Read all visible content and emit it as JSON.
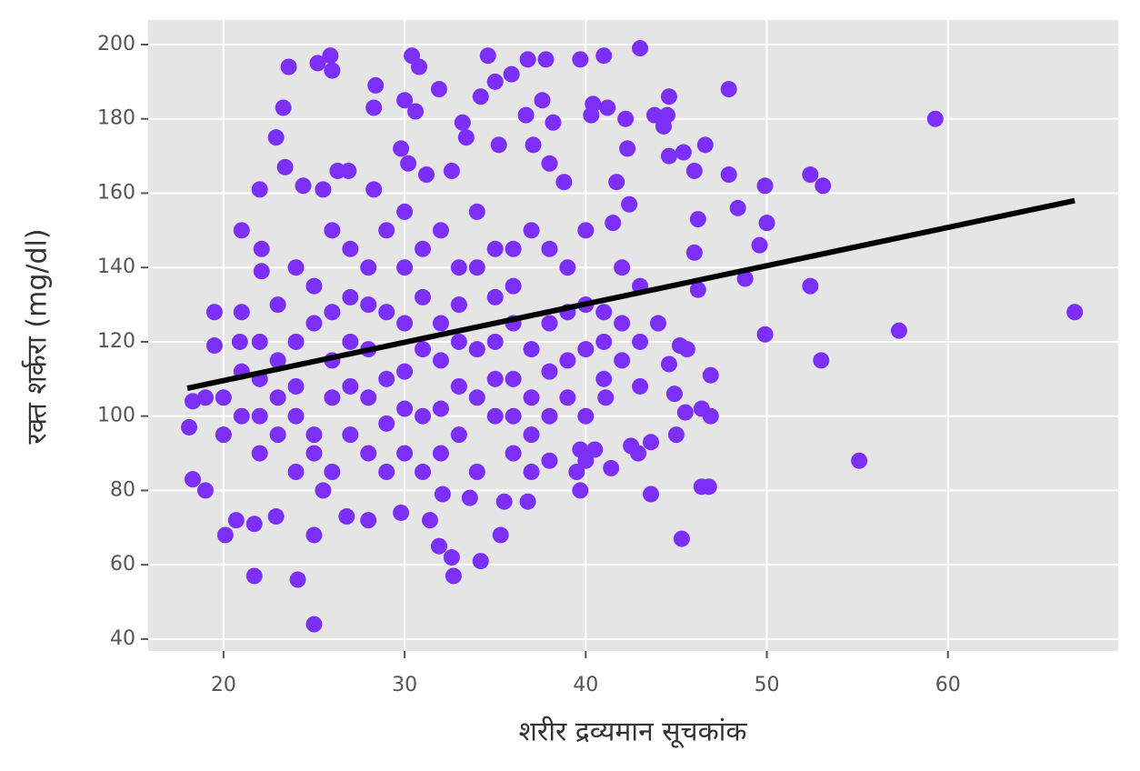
{
  "chart_data": {
    "type": "scatter",
    "x_label": "शरीर द्रव्यमान सूचकांक",
    "y_label": "रक्त शर्करा (mg/dl)",
    "color": "#7b2ff7",
    "grid": true,
    "xlim": [
      15.84,
      69.4
    ],
    "ylim": [
      36.8,
      206.6
    ],
    "xticks": [
      20,
      30,
      40,
      50,
      60
    ],
    "yticks": [
      40,
      60,
      80,
      100,
      120,
      140,
      160,
      180,
      200
    ],
    "x": [
      59.3,
      67,
      57.3,
      55.1,
      53,
      52.4,
      52.4,
      53.1,
      49.9,
      50,
      49.6,
      49.9,
      48.4,
      47.9,
      47.9,
      48.8,
      46.9,
      46.9,
      46.4,
      46.8,
      45.3,
      45,
      43.6,
      43.6,
      42.9,
      42.5,
      41.4,
      41.1,
      40.5,
      39.7,
      39.7,
      39.5,
      43,
      41,
      39.7,
      36.8,
      37.8,
      35.9,
      34.6,
      30.4,
      30.8,
      25.9,
      25.2,
      26,
      23.6,
      28.4,
      31.9,
      30,
      28.3,
      30.6,
      23.3,
      22.9,
      23.4,
      26.3,
      26.9,
      24.4,
      22,
      25.5,
      28.3,
      21,
      22.1,
      22.1,
      19.5,
      19.5,
      21,
      20.9,
      18.3,
      18.1,
      18.3,
      19,
      20.1,
      20.7,
      21.7,
      21.7,
      22.9,
      24.1,
      25,
      25,
      25.5,
      26.8,
      28,
      29.8,
      31.4,
      31.9,
      32.6,
      32.7,
      34.2,
      35.3,
      35.5,
      36.8,
      33.6,
      32.1,
      44.5,
      44.6,
      43.8,
      44.3,
      44.6,
      45.4,
      46,
      46.6,
      46.2,
      46,
      46.2,
      45.6,
      45.2,
      44.6,
      44.9,
      45.5,
      46.4,
      42.2,
      42.3,
      41.7,
      42.4,
      41.5,
      40.3,
      40.4,
      41.2,
      38.8,
      38,
      37.1,
      35.2,
      36.7,
      37.6,
      38.2,
      33.4,
      33.2,
      32.6,
      31.2,
      30.2,
      29.8,
      34.2,
      35,
      22,
      23,
      24,
      25,
      26,
      27,
      28,
      29,
      30,
      31,
      32,
      33,
      34,
      35,
      36,
      37,
      38,
      39,
      40,
      41,
      42,
      43,
      44,
      23,
      24,
      25,
      26,
      27,
      28,
      29,
      30,
      31,
      32,
      33,
      34,
      35,
      36,
      37,
      38,
      39,
      40,
      21,
      22,
      23,
      24,
      25,
      26,
      27,
      28,
      29,
      30,
      31,
      32,
      33,
      34,
      35,
      36,
      37,
      38,
      39,
      40,
      41,
      42,
      43,
      20,
      19,
      20,
      21,
      22,
      23,
      24,
      25,
      26,
      27,
      28,
      29,
      30,
      31,
      32,
      33,
      34,
      35,
      36,
      37,
      38,
      39,
      40,
      41,
      42,
      43,
      29,
      31,
      33,
      35,
      27,
      30,
      32,
      34,
      36,
      28,
      30,
      36,
      38,
      37,
      40,
      26,
      24,
      22
    ],
    "values": [
      180,
      128,
      123,
      88,
      115,
      135,
      165,
      162,
      162,
      152,
      146,
      122,
      156,
      188,
      165,
      137,
      111,
      100,
      81,
      81,
      67,
      95,
      79,
      93,
      90,
      92,
      86,
      105,
      91,
      91,
      80,
      85,
      199,
      197,
      196,
      196,
      196,
      192,
      197,
      197,
      194,
      197,
      195,
      193,
      194,
      189,
      188,
      185,
      183,
      182,
      183,
      175,
      167,
      166,
      166,
      162,
      161,
      161,
      161,
      150,
      145,
      139,
      128,
      119,
      128,
      120,
      104,
      97,
      83,
      80,
      68,
      72,
      71,
      57,
      73,
      56,
      44,
      68,
      80,
      73,
      72,
      74,
      72,
      65,
      62,
      57,
      61,
      68,
      77,
      77,
      78,
      79,
      181,
      186,
      181,
      178,
      170,
      171,
      166,
      173,
      153,
      144,
      134,
      118,
      119,
      114,
      106,
      101,
      102,
      180,
      172,
      163,
      157,
      152,
      181,
      184,
      183,
      163,
      168,
      173,
      173,
      181,
      185,
      179,
      175,
      179,
      166,
      165,
      168,
      172,
      186,
      190,
      110,
      115,
      100,
      95,
      105,
      120,
      130,
      110,
      125,
      100,
      115,
      130,
      105,
      120,
      110,
      95,
      125,
      115,
      130,
      120,
      140,
      135,
      125,
      130,
      140,
      135,
      150,
      145,
      140,
      150,
      155,
      145,
      150,
      140,
      155,
      145,
      135,
      150,
      145,
      140,
      150,
      100,
      90,
      95,
      85,
      90,
      85,
      95,
      90,
      85,
      90,
      85,
      90,
      95,
      85,
      100,
      90,
      105,
      100,
      105,
      100,
      110,
      115,
      120,
      95,
      105,
      105,
      112,
      120,
      105,
      120,
      125,
      115,
      108,
      118,
      128,
      112,
      132,
      125,
      108,
      118,
      132,
      125,
      118,
      112,
      128,
      118,
      128,
      125,
      108,
      98,
      118,
      120,
      110,
      132,
      140,
      102,
      140,
      145,
      105,
      102,
      100,
      88,
      85,
      88,
      128,
      108,
      100
    ],
    "fit_line": {
      "color": "#000000",
      "x": [
        18,
        67
      ],
      "values": [
        107.5,
        158
      ]
    }
  }
}
